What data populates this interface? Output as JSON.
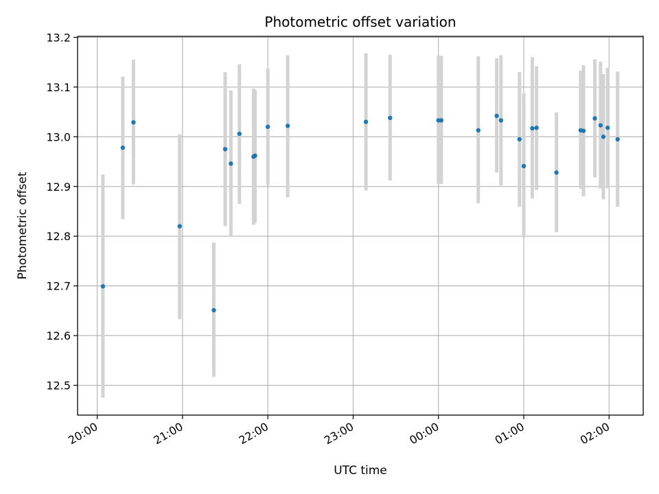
{
  "chart_data": {
    "type": "scatter",
    "title": "Photometric offset variation",
    "xlabel": "UTC time",
    "ylabel": "Photometric offset",
    "x_unit": "UTC hours (times after midnight written as 24+)",
    "xlim": [
      19.77,
      26.4
    ],
    "ylim": [
      12.44,
      13.202
    ],
    "grid": true,
    "legend": "none",
    "x_ticks": [
      {
        "value": 20,
        "label": "20:00"
      },
      {
        "value": 21,
        "label": "21:00"
      },
      {
        "value": 22,
        "label": "22:00"
      },
      {
        "value": 23,
        "label": "23:00"
      },
      {
        "value": 24,
        "label": "00:00"
      },
      {
        "value": 25,
        "label": "01:00"
      },
      {
        "value": 26,
        "label": "02:00"
      }
    ],
    "y_ticks": [
      {
        "value": 12.5,
        "label": "12.5"
      },
      {
        "value": 12.6,
        "label": "12.6"
      },
      {
        "value": 12.7,
        "label": "12.7"
      },
      {
        "value": 12.8,
        "label": "12.8"
      },
      {
        "value": 12.9,
        "label": "12.9"
      },
      {
        "value": 13.0,
        "label": "13.0"
      },
      {
        "value": 13.1,
        "label": "13.1"
      },
      {
        "value": 13.2,
        "label": "13.2"
      }
    ],
    "colors": {
      "point": "#1f77b4",
      "errorbar": "#d3d3d3",
      "grid": "#b0b0b0"
    },
    "points": [
      {
        "x": 20.067,
        "y": 12.699,
        "lo": 12.475,
        "hi": 12.924
      },
      {
        "x": 20.3,
        "y": 12.978,
        "lo": 12.834,
        "hi": 13.121
      },
      {
        "x": 20.425,
        "y": 13.029,
        "lo": 12.904,
        "hi": 13.155
      },
      {
        "x": 20.967,
        "y": 12.82,
        "lo": 12.633,
        "hi": 13.005
      },
      {
        "x": 21.367,
        "y": 12.651,
        "lo": 12.517,
        "hi": 12.787
      },
      {
        "x": 21.5,
        "y": 12.975,
        "lo": 12.82,
        "hi": 13.13
      },
      {
        "x": 21.567,
        "y": 12.946,
        "lo": 12.8,
        "hi": 13.093
      },
      {
        "x": 21.667,
        "y": 13.006,
        "lo": 12.865,
        "hi": 13.146
      },
      {
        "x": 21.833,
        "y": 12.96,
        "lo": 12.823,
        "hi": 13.097
      },
      {
        "x": 21.85,
        "y": 12.962,
        "lo": 12.827,
        "hi": 13.094
      },
      {
        "x": 22.0,
        "y": 13.02,
        "lo": 12.903,
        "hi": 13.137
      },
      {
        "x": 22.233,
        "y": 13.022,
        "lo": 12.878,
        "hi": 13.164
      },
      {
        "x": 23.15,
        "y": 13.03,
        "lo": 12.892,
        "hi": 13.168
      },
      {
        "x": 23.433,
        "y": 13.038,
        "lo": 12.912,
        "hi": 13.165
      },
      {
        "x": 24.0,
        "y": 13.033,
        "lo": 12.905,
        "hi": 13.163
      },
      {
        "x": 24.033,
        "y": 13.033,
        "lo": 12.905,
        "hi": 13.163
      },
      {
        "x": 24.467,
        "y": 13.013,
        "lo": 12.866,
        "hi": 13.162
      },
      {
        "x": 24.683,
        "y": 13.042,
        "lo": 12.928,
        "hi": 13.158
      },
      {
        "x": 24.733,
        "y": 13.033,
        "lo": 12.902,
        "hi": 13.164
      },
      {
        "x": 24.95,
        "y": 12.995,
        "lo": 12.859,
        "hi": 13.13
      },
      {
        "x": 25.0,
        "y": 12.941,
        "lo": 12.797,
        "hi": 13.087
      },
      {
        "x": 25.1,
        "y": 13.017,
        "lo": 12.876,
        "hi": 13.16
      },
      {
        "x": 25.15,
        "y": 13.018,
        "lo": 12.893,
        "hi": 13.142
      },
      {
        "x": 25.383,
        "y": 12.928,
        "lo": 12.808,
        "hi": 13.049
      },
      {
        "x": 25.667,
        "y": 13.013,
        "lo": 12.895,
        "hi": 13.133
      },
      {
        "x": 25.7,
        "y": 13.012,
        "lo": 12.88,
        "hi": 13.144
      },
      {
        "x": 25.833,
        "y": 13.037,
        "lo": 12.918,
        "hi": 13.156
      },
      {
        "x": 25.9,
        "y": 13.023,
        "lo": 12.896,
        "hi": 13.151
      },
      {
        "x": 25.933,
        "y": 13.0,
        "lo": 12.874,
        "hi": 13.126
      },
      {
        "x": 25.983,
        "y": 13.018,
        "lo": 12.896,
        "hi": 13.139
      },
      {
        "x": 26.1,
        "y": 12.995,
        "lo": 12.859,
        "hi": 13.131
      }
    ]
  }
}
